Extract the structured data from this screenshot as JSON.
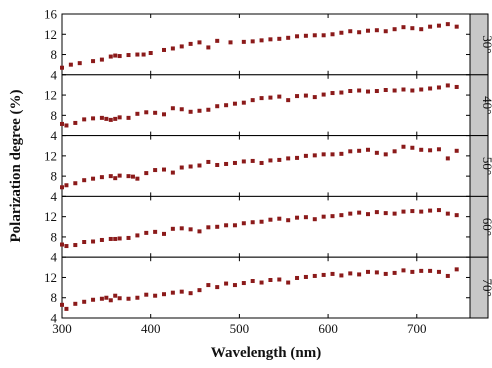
{
  "chart_data": {
    "type": "scatter",
    "layout": "faceted-vertical",
    "xlabel": "Wavelength (nm)",
    "ylabel": "Polarization degree (%)",
    "xlim": [
      300,
      760
    ],
    "ylim": [
      4,
      16
    ],
    "x_ticks": [
      300,
      400,
      500,
      600,
      700
    ],
    "y_ticks": [
      4,
      8,
      12,
      16
    ],
    "strip_position": "right",
    "marker": "square",
    "colors": {
      "marker": "#8b1a1a",
      "strip": "#c8c8c8",
      "frame": "#000000",
      "background": "#ffffff"
    },
    "panels": [
      {
        "label": "30°",
        "x": [
          300,
          310,
          320,
          335,
          345,
          355,
          360,
          365,
          375,
          385,
          392,
          400,
          415,
          425,
          435,
          445,
          455,
          465,
          475,
          490,
          505,
          515,
          525,
          535,
          545,
          555,
          565,
          575,
          585,
          595,
          605,
          615,
          625,
          635,
          645,
          655,
          665,
          675,
          685,
          695,
          705,
          715,
          725,
          735,
          745
        ],
        "y": [
          5.4,
          6.0,
          6.3,
          6.7,
          7.0,
          7.6,
          7.8,
          7.7,
          7.9,
          8.0,
          8.0,
          8.3,
          8.9,
          9.2,
          9.6,
          10.1,
          10.4,
          9.4,
          10.7,
          10.4,
          10.5,
          10.6,
          10.8,
          11.0,
          11.1,
          11.3,
          11.6,
          11.7,
          11.8,
          11.8,
          12.0,
          12.3,
          12.6,
          12.4,
          12.7,
          12.8,
          12.6,
          13.0,
          13.4,
          13.2,
          13.0,
          13.5,
          13.7,
          14.0,
          13.5
        ]
      },
      {
        "label": "40°",
        "x": [
          300,
          305,
          315,
          325,
          335,
          345,
          350,
          355,
          360,
          365,
          375,
          385,
          395,
          405,
          415,
          425,
          435,
          445,
          455,
          465,
          475,
          485,
          495,
          505,
          515,
          525,
          535,
          545,
          555,
          565,
          575,
          585,
          595,
          605,
          615,
          625,
          635,
          645,
          655,
          665,
          675,
          685,
          695,
          705,
          715,
          725,
          735,
          745
        ],
        "y": [
          6.3,
          6.0,
          6.5,
          7.2,
          7.4,
          7.5,
          7.3,
          7.1,
          7.3,
          7.6,
          7.5,
          8.3,
          8.6,
          8.5,
          8.2,
          9.4,
          9.2,
          8.7,
          8.9,
          9.1,
          9.8,
          10.0,
          10.3,
          10.5,
          11.0,
          11.4,
          11.5,
          11.7,
          11.0,
          11.8,
          11.9,
          11.6,
          12.1,
          12.4,
          12.5,
          12.8,
          12.9,
          12.7,
          12.8,
          13.0,
          12.9,
          13.1,
          12.9,
          13.1,
          13.3,
          13.5,
          13.9,
          13.6
        ]
      },
      {
        "label": "50°",
        "x": [
          300,
          305,
          315,
          325,
          335,
          345,
          355,
          360,
          365,
          375,
          380,
          385,
          395,
          405,
          415,
          425,
          435,
          445,
          455,
          465,
          475,
          485,
          495,
          505,
          515,
          525,
          535,
          545,
          555,
          565,
          575,
          585,
          595,
          605,
          615,
          625,
          635,
          645,
          655,
          665,
          675,
          685,
          695,
          705,
          715,
          725,
          735,
          745
        ],
        "y": [
          5.8,
          6.2,
          6.6,
          7.2,
          7.5,
          7.8,
          8.0,
          7.6,
          8.1,
          8.0,
          7.9,
          7.5,
          8.6,
          9.2,
          9.3,
          8.7,
          9.7,
          9.9,
          10.1,
          10.8,
          10.2,
          10.4,
          10.6,
          10.9,
          11.0,
          10.6,
          11.1,
          11.2,
          11.5,
          11.6,
          12.0,
          12.1,
          12.3,
          12.3,
          12.4,
          12.9,
          13.0,
          13.2,
          12.6,
          12.3,
          12.9,
          13.8,
          13.6,
          13.2,
          13.1,
          13.3,
          11.5,
          13.0
        ]
      },
      {
        "label": "60°",
        "x": [
          300,
          305,
          315,
          325,
          335,
          345,
          355,
          360,
          365,
          375,
          385,
          395,
          405,
          415,
          425,
          435,
          445,
          455,
          465,
          475,
          485,
          495,
          505,
          515,
          525,
          535,
          545,
          555,
          565,
          575,
          585,
          595,
          605,
          615,
          625,
          635,
          645,
          655,
          665,
          675,
          685,
          695,
          705,
          715,
          725,
          735,
          745
        ],
        "y": [
          6.5,
          6.2,
          6.4,
          7.0,
          7.1,
          7.4,
          7.6,
          7.6,
          7.7,
          7.8,
          8.3,
          8.8,
          9.0,
          8.6,
          9.6,
          9.7,
          9.5,
          9.1,
          9.9,
          10.0,
          10.3,
          10.3,
          10.7,
          10.9,
          11.0,
          11.4,
          11.6,
          11.3,
          11.8,
          11.9,
          11.5,
          12.0,
          12.1,
          12.3,
          12.6,
          12.8,
          12.5,
          12.9,
          12.7,
          12.6,
          13.0,
          13.1,
          13.0,
          13.2,
          13.3,
          12.6,
          12.3
        ]
      },
      {
        "label": "70°",
        "x": [
          300,
          305,
          315,
          325,
          335,
          345,
          350,
          355,
          360,
          365,
          375,
          385,
          395,
          405,
          415,
          425,
          435,
          445,
          455,
          465,
          475,
          485,
          495,
          505,
          515,
          525,
          535,
          545,
          555,
          565,
          575,
          585,
          595,
          605,
          615,
          625,
          635,
          645,
          655,
          665,
          675,
          685,
          695,
          705,
          715,
          725,
          735,
          745
        ],
        "y": [
          6.6,
          5.8,
          6.8,
          7.2,
          7.6,
          7.8,
          8.0,
          7.5,
          8.4,
          7.9,
          7.8,
          8.0,
          8.6,
          8.4,
          8.7,
          9.0,
          9.2,
          8.9,
          9.5,
          10.5,
          10.1,
          10.8,
          10.5,
          10.9,
          11.3,
          11.0,
          11.5,
          11.6,
          11.0,
          11.9,
          12.1,
          12.3,
          12.5,
          12.7,
          12.4,
          12.8,
          12.6,
          13.1,
          13.0,
          12.7,
          12.9,
          13.4,
          13.1,
          13.3,
          13.3,
          13.1,
          12.3,
          13.6
        ]
      }
    ]
  }
}
